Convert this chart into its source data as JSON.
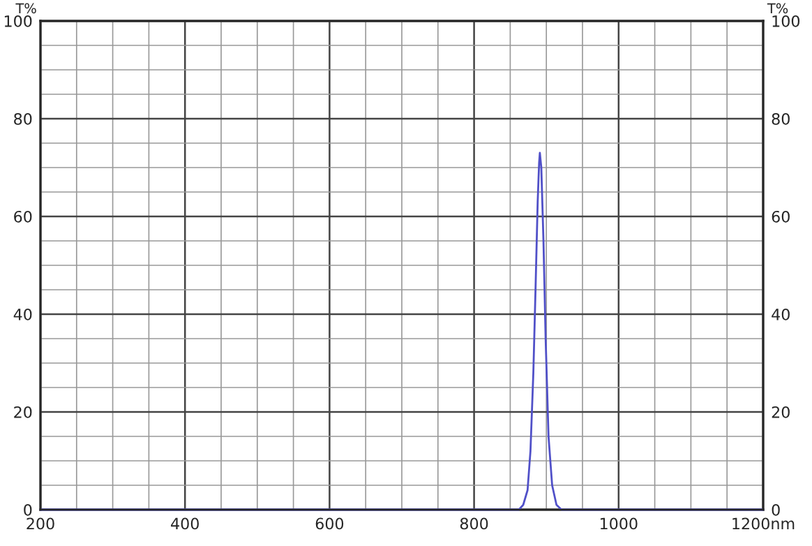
{
  "chart_data": {
    "type": "line",
    "ylabel": "T%",
    "y2label": "T%",
    "x": [
      200,
      850,
      862,
      868,
      874,
      878,
      882,
      885,
      888,
      890,
      891,
      893,
      896,
      899,
      903,
      908,
      914,
      921,
      950,
      1200
    ],
    "series": [
      {
        "color": "#5050c8",
        "values": [
          0,
          0,
          0,
          1,
          4,
          12,
          28,
          45,
          63,
          71,
          73,
          70,
          55,
          35,
          15,
          5,
          1,
          0,
          0,
          0
        ]
      }
    ],
    "xlim": [
      200,
      1200
    ],
    "ylim": [
      0,
      100
    ],
    "y2lim": [
      0,
      100
    ],
    "xticks": [
      {
        "value": 200,
        "label": "200"
      },
      {
        "value": 250,
        "label": null
      },
      {
        "value": 300,
        "label": null
      },
      {
        "value": 350,
        "label": null
      },
      400,
      {
        "value": 450,
        "label": null
      },
      {
        "value": 500,
        "label": null
      },
      {
        "value": 550,
        "label": null
      },
      600,
      {
        "value": 650,
        "label": null
      },
      {
        "value": 700,
        "label": null
      },
      {
        "value": 750,
        "label": null
      },
      800,
      {
        "value": 850,
        "label": null
      },
      {
        "value": 900,
        "label": null
      },
      {
        "value": 950,
        "label": null
      },
      1000,
      {
        "value": 1050,
        "label": null
      },
      {
        "value": 1100,
        "label": null
      },
      {
        "value": 1150,
        "label": null
      },
      {
        "value": 1200,
        "label": "1200nm"
      }
    ],
    "yticks": [
      0,
      {
        "value": 5,
        "label": null
      },
      {
        "value": 10,
        "label": null
      },
      {
        "value": 15,
        "label": null
      },
      20,
      {
        "value": 25,
        "label": null
      },
      {
        "value": 30,
        "label": null
      },
      {
        "value": 35,
        "label": null
      },
      40,
      {
        "value": 45,
        "label": null
      },
      {
        "value": 50,
        "label": null
      },
      {
        "value": 55,
        "label": null
      },
      60,
      {
        "value": 65,
        "label": null
      },
      {
        "value": 70,
        "label": null
      },
      {
        "value": 75,
        "label": null
      },
      80,
      {
        "value": 85,
        "label": null
      },
      {
        "value": 90,
        "label": null
      },
      {
        "value": 95,
        "label": null
      },
      100
    ],
    "y2ticks": [
      0,
      20,
      40,
      60,
      80,
      100
    ],
    "grid": true,
    "legend": false,
    "line_style": "solid",
    "marker": "none"
  }
}
